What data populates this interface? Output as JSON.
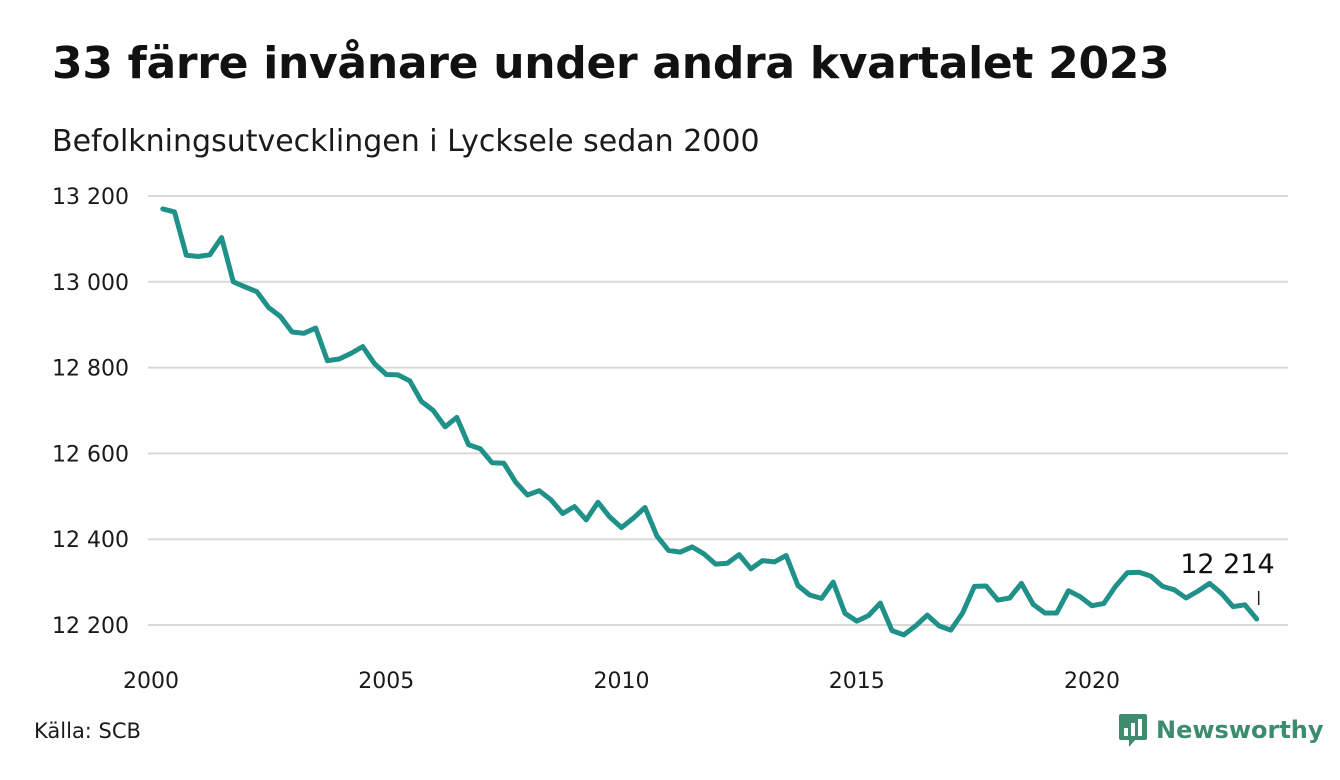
{
  "title": "33 färre invånare under andra kvartalet 2023",
  "subtitle": "Befolkningsutvecklingen i Lycksele sedan 2000",
  "source": "Källa: SCB",
  "brand": {
    "name": "Newsworthy",
    "icon": "newsworthy-logo-icon",
    "color": "#3d8c6e"
  },
  "chart_data": {
    "type": "line",
    "title": "33 färre invånare under andra kvartalet 2023",
    "subtitle": "Befolkningsutvecklingen i Lycksele sedan 2000",
    "x_ticks": [
      2000,
      2005,
      2010,
      2015,
      2020
    ],
    "x_tick_labels": [
      "2000",
      "2005",
      "2010",
      "2015",
      "2020"
    ],
    "y_ticks": [
      12200,
      12400,
      12600,
      12800,
      13000,
      13200
    ],
    "y_tick_labels": [
      "12 200",
      "12 400",
      "12 600",
      "12 800",
      "13 000",
      "13 200"
    ],
    "xlim": [
      2000,
      2024.2
    ],
    "ylim": [
      12180,
      13200
    ],
    "grid": "horizontal",
    "line_color": "#1f9188",
    "end_label": "12 214",
    "series": [
      {
        "x": [
          2000.25,
          2000.5,
          2000.75,
          2001.0,
          2001.25,
          2001.5,
          2001.75,
          2002.0,
          2002.25,
          2002.5,
          2002.75,
          2003.0,
          2003.25,
          2003.5,
          2003.75,
          2004.0,
          2004.25,
          2004.5,
          2004.75,
          2005.0,
          2005.25,
          2005.5,
          2005.75,
          2006.0,
          2006.25,
          2006.5,
          2006.75,
          2007.0,
          2007.25,
          2007.5,
          2007.75,
          2008.0,
          2008.25,
          2008.5,
          2008.75,
          2009.0,
          2009.25,
          2009.5,
          2009.75,
          2010.0,
          2010.25,
          2010.5,
          2010.75,
          2011.0,
          2011.25,
          2011.5,
          2011.75,
          2012.0,
          2012.25,
          2012.5,
          2012.75,
          2013.0,
          2013.25,
          2013.5,
          2013.75,
          2014.0,
          2014.25,
          2014.5,
          2014.75,
          2015.0,
          2015.25,
          2015.5,
          2015.75,
          2016.0,
          2016.25,
          2016.5,
          2016.75,
          2017.0,
          2017.25,
          2017.5,
          2017.75,
          2018.0,
          2018.25,
          2018.5,
          2018.75,
          2019.0,
          2019.25,
          2019.5,
          2019.75,
          2020.0,
          2020.25,
          2020.5,
          2020.75,
          2021.0,
          2021.25,
          2021.5,
          2021.75,
          2022.0,
          2022.25,
          2022.5,
          2022.75,
          2023.0,
          2023.25,
          2023.5
        ],
        "y": [
          13170,
          13163,
          13062,
          13059,
          13063,
          13103,
          13000,
          12988,
          12977,
          12940,
          12919,
          12883,
          12880,
          12892,
          12816,
          12820,
          12833,
          12849,
          12809,
          12784,
          12783,
          12769,
          12721,
          12700,
          12662,
          12684,
          12620,
          12611,
          12578,
          12577,
          12533,
          12503,
          12513,
          12492,
          12460,
          12476,
          12445,
          12486,
          12452,
          12427,
          12449,
          12474,
          12408,
          12374,
          12370,
          12382,
          12366,
          12342,
          12344,
          12364,
          12331,
          12350,
          12347,
          12362,
          12292,
          12270,
          12262,
          12300,
          12227,
          12209,
          12222,
          12251,
          12187,
          12177,
          12198,
          12223,
          12198,
          12188,
          12228,
          12290,
          12291,
          12258,
          12263,
          12297,
          12248,
          12228,
          12228,
          12280,
          12266,
          12245,
          12250,
          12290,
          12322,
          12323,
          12314,
          12290,
          12282,
          12263,
          12279,
          12297,
          12274,
          12243,
          12247,
          12214
        ]
      }
    ]
  }
}
